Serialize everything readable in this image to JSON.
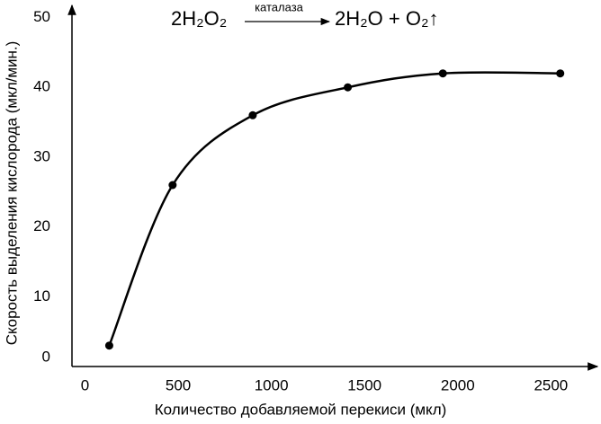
{
  "chart_data": {
    "type": "line",
    "equation": {
      "reactant": "2H₂O₂",
      "catalyst": "каталаза",
      "products": "2H₂O + O₂↑"
    },
    "x_label": "Количество добавляемой перекиси (мкл)",
    "y_label": "Скорость выделения кислорода (мкл/мин.)",
    "x": [
      130,
      470,
      900,
      1410,
      1920,
      2550
    ],
    "values": [
      3,
      26,
      36,
      40,
      42,
      42
    ],
    "color": "#000000",
    "xlim": [
      -70,
      2730
    ],
    "ylim": [
      0,
      52
    ],
    "xticks": [
      0,
      500,
      1000,
      1500,
      2000,
      2500
    ],
    "yticks": [
      0,
      10,
      20,
      30,
      40,
      50
    ],
    "grid": false
  }
}
